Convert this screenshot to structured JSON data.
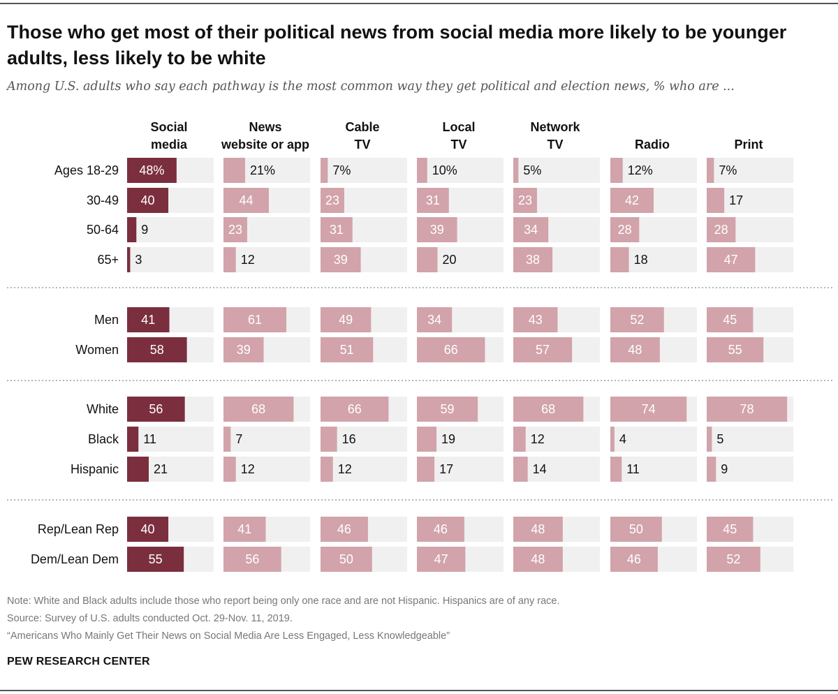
{
  "title": "Those who get most of their political news from social media more likely to be younger adults, less likely to be white",
  "subtitle": "Among U.S. adults who say each pathway is the most common way they get political and election news, % who are ...",
  "notes": {
    "note": "Note: White and Black adults include those who report being only one race and are not Hispanic. Hispanics are of any race.",
    "source": "Source: Survey of U.S. adults conducted Oct. 29-Nov. 11, 2019.",
    "report": "“Americans Who Mainly Get Their News on Social Media Are Less Engaged, Less Knowledgeable”",
    "brand": "PEW RESEARCH CENTER"
  },
  "colors": {
    "highlight": "#7b2f3e",
    "bar": "#d2a3aa",
    "track": "#f0f0f0",
    "label_dark": "#ffffff",
    "separator": "#b5b5b5"
  },
  "chart_data": {
    "type": "bar",
    "unit": "%",
    "columns": [
      {
        "label": [
          "Social",
          "media"
        ],
        "highlight": true
      },
      {
        "label": [
          "News",
          "website or app"
        ],
        "highlight": false
      },
      {
        "label": [
          "Cable",
          "TV"
        ],
        "highlight": false
      },
      {
        "label": [
          "Local",
          "TV"
        ],
        "highlight": false
      },
      {
        "label": [
          "Network",
          "TV"
        ],
        "highlight": false
      },
      {
        "label": [
          "",
          "Radio"
        ],
        "highlight": false
      },
      {
        "label": [
          "",
          "Print"
        ],
        "highlight": false
      }
    ],
    "groups": [
      {
        "rows": [
          {
            "label": "Ages 18-29",
            "values": [
              48,
              21,
              7,
              10,
              5,
              12,
              7
            ],
            "pct": true
          },
          {
            "label": "30-49",
            "values": [
              40,
              44,
              23,
              31,
              23,
              42,
              17
            ]
          },
          {
            "label": "50-64",
            "values": [
              9,
              23,
              31,
              39,
              34,
              28,
              28
            ]
          },
          {
            "label": "65+",
            "values": [
              3,
              12,
              39,
              20,
              38,
              18,
              47
            ]
          }
        ]
      },
      {
        "rows": [
          {
            "label": "Men",
            "values": [
              41,
              61,
              49,
              34,
              43,
              52,
              45
            ]
          },
          {
            "label": "Women",
            "values": [
              58,
              39,
              51,
              66,
              57,
              48,
              55
            ]
          }
        ]
      },
      {
        "rows": [
          {
            "label": "White",
            "values": [
              56,
              68,
              66,
              59,
              68,
              74,
              78
            ]
          },
          {
            "label": "Black",
            "values": [
              11,
              7,
              16,
              19,
              12,
              4,
              5
            ]
          },
          {
            "label": "Hispanic",
            "values": [
              21,
              12,
              12,
              17,
              14,
              11,
              9
            ]
          }
        ]
      },
      {
        "rows": [
          {
            "label": "Rep/Lean Rep",
            "values": [
              40,
              41,
              46,
              46,
              48,
              50,
              45
            ]
          },
          {
            "label": "Dem/Lean Dem",
            "values": [
              55,
              56,
              50,
              47,
              48,
              46,
              52
            ]
          }
        ]
      }
    ]
  }
}
